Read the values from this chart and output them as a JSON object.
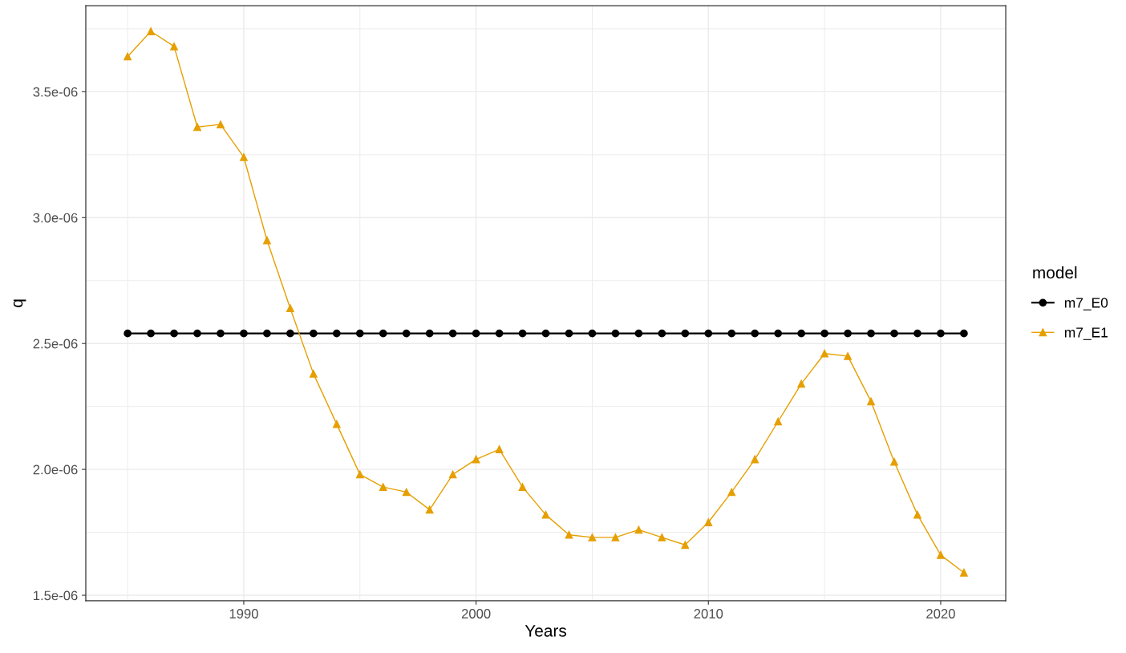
{
  "chart_data": {
    "type": "line",
    "xlabel": "Years",
    "ylabel": "q",
    "legend_title": "model",
    "legend": "right",
    "grid": true,
    "line_style": "solid",
    "x": [
      1985,
      1986,
      1987,
      1988,
      1989,
      1990,
      1991,
      1992,
      1993,
      1994,
      1995,
      1996,
      1997,
      1998,
      1999,
      2000,
      2001,
      2002,
      2003,
      2004,
      2005,
      2006,
      2007,
      2008,
      2009,
      2010,
      2011,
      2012,
      2013,
      2014,
      2015,
      2016,
      2017,
      2018,
      2019,
      2020,
      2021
    ],
    "xlim": [
      1983.2,
      2022.8
    ],
    "xticks": [
      1990,
      2000,
      2010,
      2020
    ],
    "ylim": [
      1.478e-06,
      3.842e-06
    ],
    "yticks": [
      {
        "value": 1.5e-06,
        "label": "1.5e-06"
      },
      {
        "value": 2e-06,
        "label": "2.0e-06"
      },
      {
        "value": 2.5e-06,
        "label": "2.5e-06"
      },
      {
        "value": 3e-06,
        "label": "3.0e-06"
      },
      {
        "value": 3.5e-06,
        "label": "3.5e-06"
      }
    ],
    "series": [
      {
        "name": "m7_E0",
        "color": "#000000",
        "marker": "circle",
        "values": [
          2.54e-06,
          2.54e-06,
          2.54e-06,
          2.54e-06,
          2.54e-06,
          2.54e-06,
          2.54e-06,
          2.54e-06,
          2.54e-06,
          2.54e-06,
          2.54e-06,
          2.54e-06,
          2.54e-06,
          2.54e-06,
          2.54e-06,
          2.54e-06,
          2.54e-06,
          2.54e-06,
          2.54e-06,
          2.54e-06,
          2.54e-06,
          2.54e-06,
          2.54e-06,
          2.54e-06,
          2.54e-06,
          2.54e-06,
          2.54e-06,
          2.54e-06,
          2.54e-06,
          2.54e-06,
          2.54e-06,
          2.54e-06,
          2.54e-06,
          2.54e-06,
          2.54e-06,
          2.54e-06,
          2.54e-06
        ]
      },
      {
        "name": "m7_E1",
        "color": "#e69f00",
        "marker": "triangle",
        "values": [
          3.64e-06,
          3.74e-06,
          3.68e-06,
          3.36e-06,
          3.37e-06,
          3.24e-06,
          2.91e-06,
          2.64e-06,
          2.38e-06,
          2.18e-06,
          1.98e-06,
          1.93e-06,
          1.91e-06,
          1.84e-06,
          1.98e-06,
          2.04e-06,
          2.08e-06,
          1.93e-06,
          1.82e-06,
          1.74e-06,
          1.73e-06,
          1.73e-06,
          1.76e-06,
          1.73e-06,
          1.7e-06,
          1.79e-06,
          1.91e-06,
          2.04e-06,
          2.19e-06,
          2.34e-06,
          2.46e-06,
          2.45e-06,
          2.27e-06,
          2.03e-06,
          1.82e-06,
          1.66e-06,
          1.59e-06
        ]
      }
    ]
  }
}
